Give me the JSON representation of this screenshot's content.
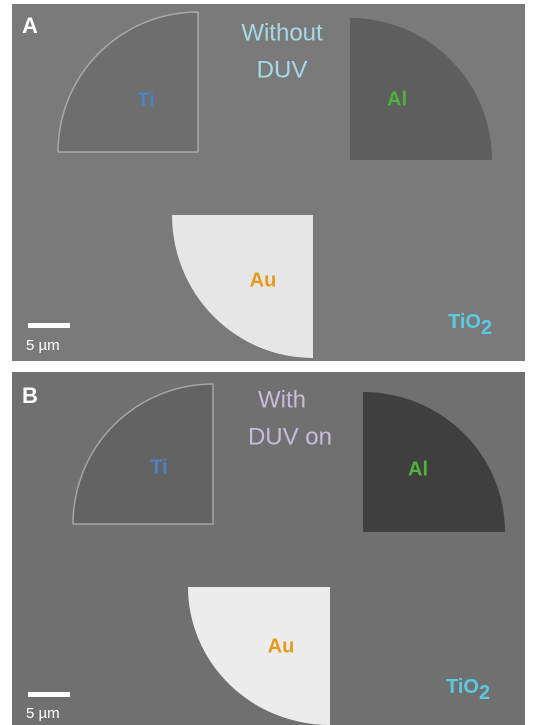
{
  "panels": [
    {
      "label": "A",
      "condition": [
        "Without",
        "DUV"
      ],
      "materials": [
        "Ti",
        "Al",
        "Au"
      ],
      "substrate": {
        "base": "TiO",
        "subscript": "2"
      },
      "scale_bar": "5 µm"
    },
    {
      "label": "B",
      "condition": [
        "With",
        "DUV on"
      ],
      "materials": [
        "Ti",
        "Al",
        "Au"
      ],
      "substrate": {
        "base": "TiO",
        "subscript": "2"
      },
      "scale_bar": "5 µm"
    }
  ]
}
